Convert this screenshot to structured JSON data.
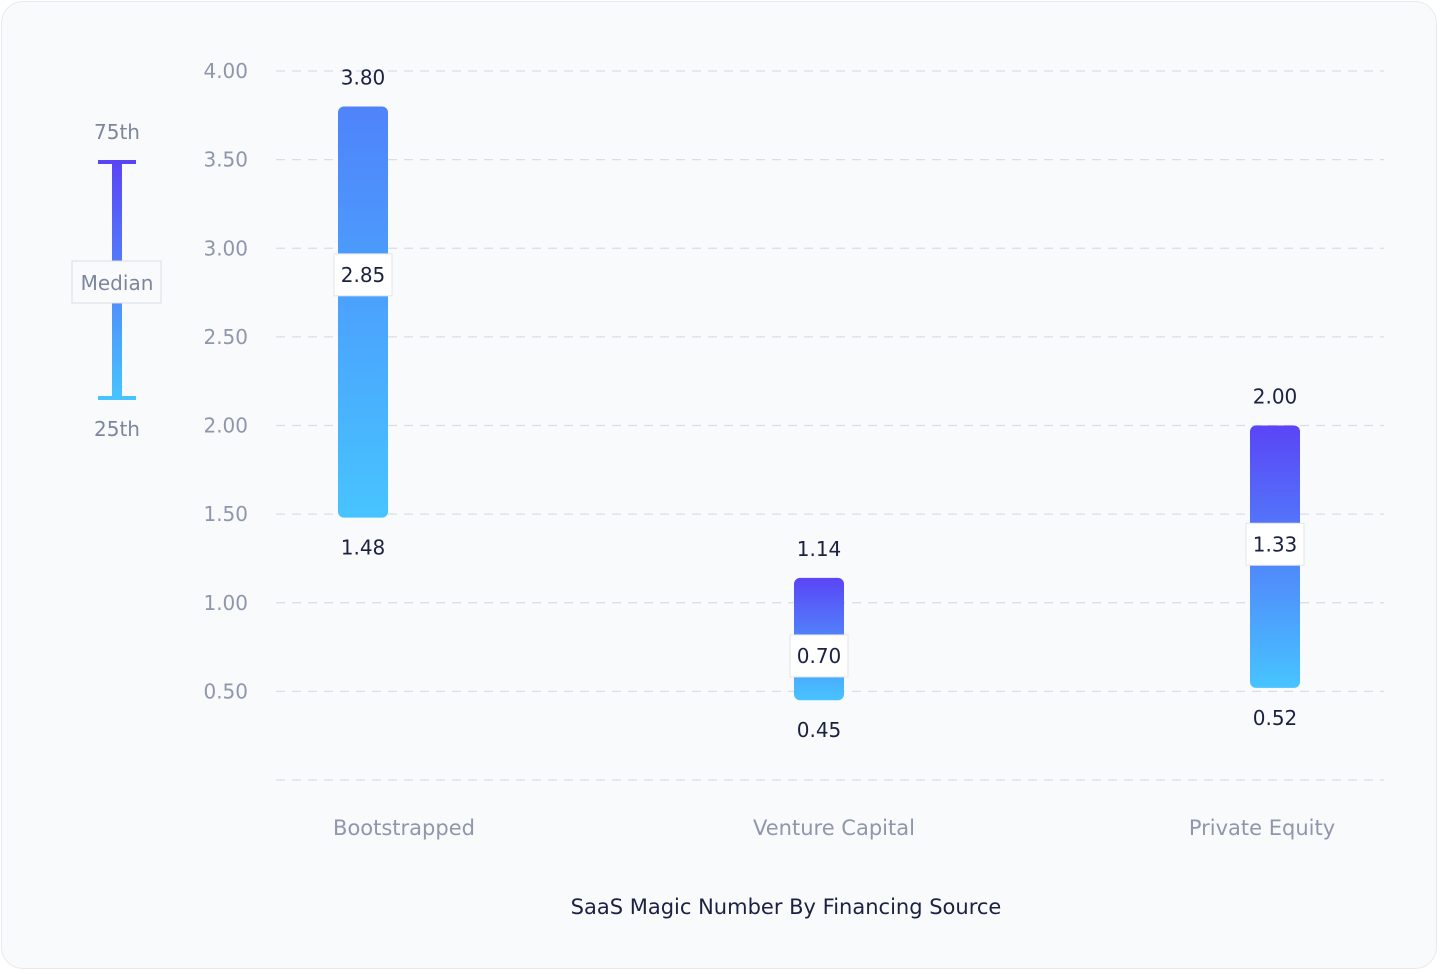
{
  "chart_data": {
    "type": "bar",
    "title": "SaaS Magic Number By Financing Source",
    "categories": [
      "Bootstrapped",
      "Venture Capital",
      "Private Equity"
    ],
    "series": [
      {
        "name": "25th",
        "values": [
          1.48,
          0.45,
          0.52
        ]
      },
      {
        "name": "Median",
        "values": [
          2.85,
          0.7,
          1.33
        ]
      },
      {
        "name": "75th",
        "values": [
          3.8,
          1.14,
          2.0
        ]
      }
    ],
    "ylim": [
      0,
      4
    ],
    "y_ticks": [
      "0.50",
      "1.00",
      "1.50",
      "2.00",
      "2.50",
      "3.00",
      "3.50",
      "4.00"
    ],
    "grid": true,
    "legend": {
      "placement": "left",
      "top_label": "75th",
      "middle_label": "Median",
      "bottom_label": "25th"
    },
    "colors": {
      "top": "#5a45f6",
      "upper": "#4f83fb",
      "bottom": "#47c4ff",
      "grid": "#d9dde5"
    }
  }
}
